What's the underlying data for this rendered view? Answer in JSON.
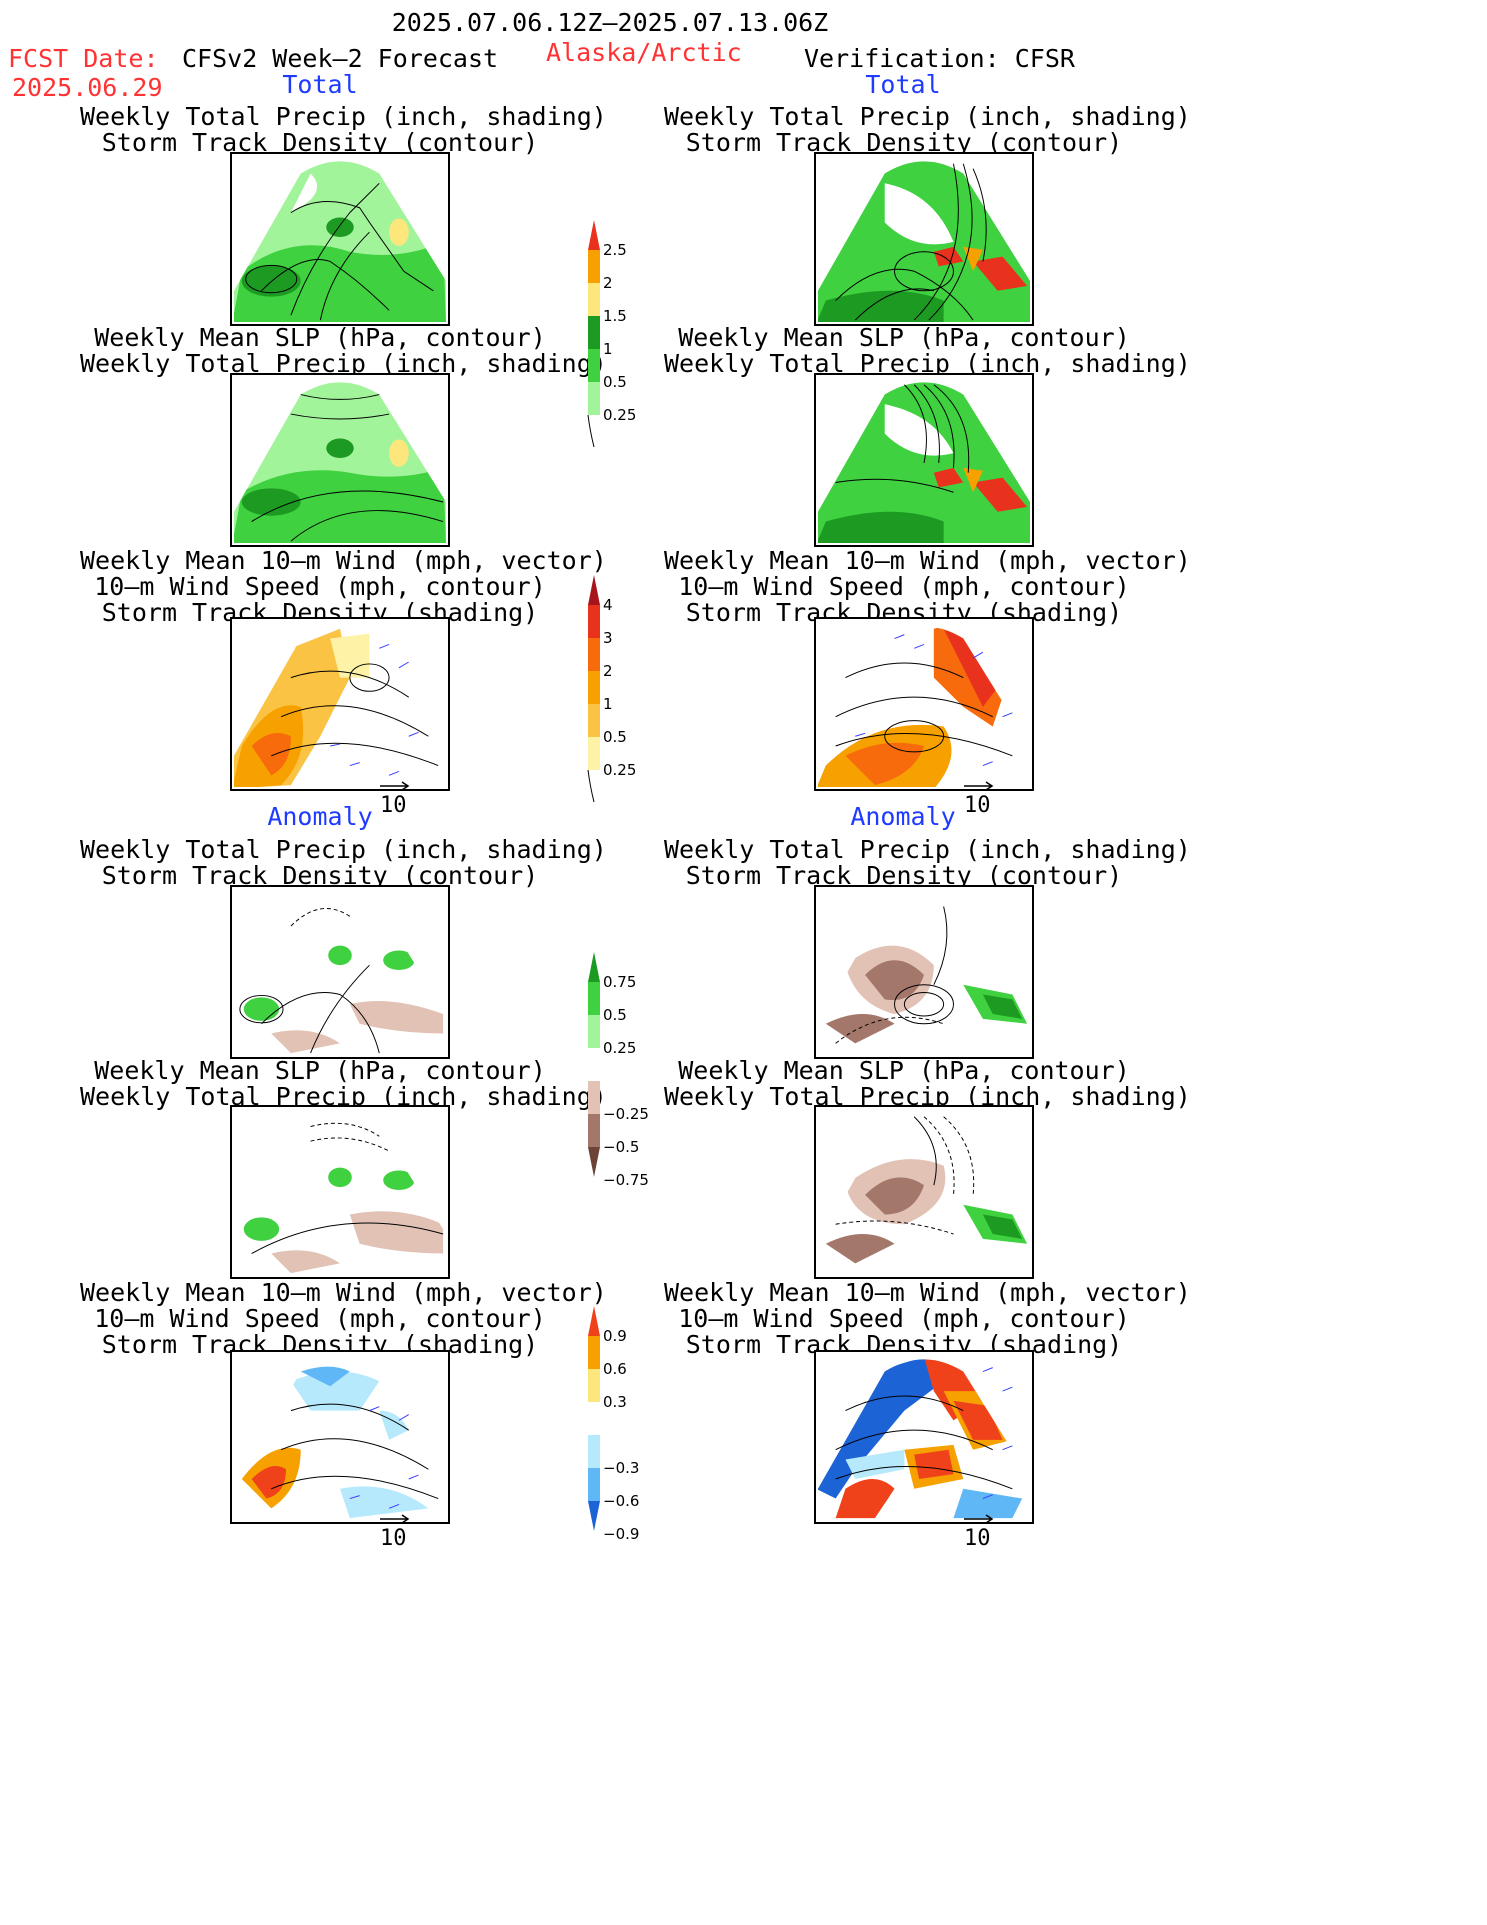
{
  "header": {
    "period": "2025.07.06.12Z–2025.07.13.06Z",
    "fcst_label": "FCST Date:",
    "fcst_date": "2025.06.29",
    "model": "CFSv2 Week–2 Forecast",
    "region": "Alaska/Arctic",
    "verification": "Verification: CFSR"
  },
  "sections": {
    "total_left": "Total",
    "total_right": "Total",
    "anomaly_left": "Anomaly",
    "anomaly_right": "Anomaly"
  },
  "titles": {
    "precip_track": [
      "Weekly Total Precip (inch, shading)",
      "Storm Track Density (contour)"
    ],
    "slp_precip": [
      "Weekly Mean SLP (hPa, contour)",
      "Weekly Total Precip (inch, shading)"
    ],
    "wind": [
      "Weekly Mean 10–m Wind (mph, vector)",
      "10–m Wind Speed (mph, contour)",
      "Storm Track Density (shading)"
    ]
  },
  "vector_reference": "10",
  "colorbars": {
    "total_precip": {
      "labels": [
        "2.5",
        "2",
        "1.5",
        "1",
        "0.5",
        "0.25"
      ],
      "colors": [
        "#e8321e",
        "#f7a100",
        "#fde77d",
        "#1c9a22",
        "#3fd13f",
        "#a2f49b"
      ]
    },
    "total_track": {
      "labels": [
        "4",
        "3",
        "2",
        "1",
        "0.5",
        "0.25"
      ],
      "colors": [
        "#a7141b",
        "#e8321e",
        "#f76b0d",
        "#f7a100",
        "#fac344",
        "#fdf2a6"
      ]
    },
    "anomaly_precip": {
      "labels": [
        "0.75",
        "0.5",
        "0.25",
        "−0.25",
        "−0.5",
        "−0.75"
      ],
      "colors": [
        "#1c9a22",
        "#3fd13f",
        "#a2f49b",
        "#ffffff",
        "#e1c2b5",
        "#a3776a",
        "#6b4437"
      ]
    },
    "anomaly_track": {
      "labels": [
        "0.9",
        "0.6",
        "0.3",
        "−0.3",
        "−0.6",
        "−0.9"
      ],
      "colors": [
        "#f0421a",
        "#f7a100",
        "#fde77d",
        "#ffffff",
        "#b6e9fb",
        "#5fb8f5",
        "#1c63d6"
      ]
    }
  }
}
